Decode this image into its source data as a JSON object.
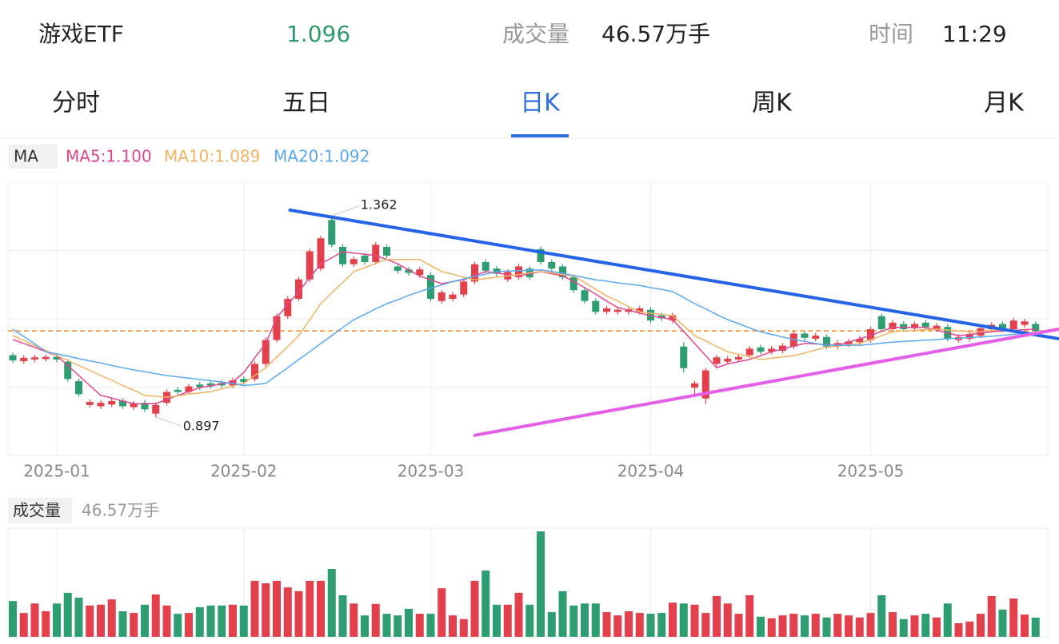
{
  "header": {
    "name": "游戏ETF",
    "price": 1.096,
    "volume_label": "成交量",
    "volume": "46.57万手",
    "time_label": "时间",
    "time": "11:29"
  },
  "tabs": [
    "分时",
    "五日",
    "日K",
    "周K",
    "月K"
  ],
  "active_tab": 2,
  "ma_title": "MA",
  "ma_legend": [
    "MA5:1.100",
    "MA10:1.089",
    "MA20:1.092"
  ],
  "volume_title": "成交量",
  "chart_data": {
    "type": "candlestick",
    "categories": [
      null,
      null,
      null,
      null,
      "2025-01",
      null,
      null,
      null,
      null,
      null,
      null,
      null,
      null,
      null,
      null,
      null,
      null,
      null,
      null,
      null,
      null,
      "2025-02",
      null,
      null,
      null,
      null,
      null,
      null,
      null,
      null,
      null,
      null,
      null,
      null,
      null,
      null,
      null,
      null,
      "2025-03",
      null,
      null,
      null,
      null,
      null,
      null,
      null,
      null,
      null,
      null,
      null,
      null,
      null,
      null,
      null,
      null,
      null,
      null,
      null,
      "2025-04",
      null,
      null,
      null,
      null,
      null,
      null,
      null,
      null,
      null,
      null,
      null,
      null,
      null,
      null,
      null,
      null,
      null,
      null,
      null,
      "2025-05",
      null,
      null,
      null,
      null,
      null,
      null,
      null,
      null,
      null,
      null,
      null,
      null,
      null,
      null,
      null
    ],
    "open": [
      1.04,
      1.026,
      1.03,
      1.031,
      1.036,
      1.025,
      0.98,
      0.925,
      0.922,
      0.926,
      0.935,
      0.92,
      0.93,
      0.905,
      0.93,
      0.96,
      0.955,
      0.972,
      0.975,
      0.976,
      0.97,
      0.985,
      0.985,
      1.02,
      1.075,
      1.13,
      1.17,
      1.215,
      1.24,
      1.352,
      1.29,
      1.25,
      1.27,
      1.255,
      1.29,
      1.245,
      1.238,
      1.225,
      1.225,
      1.165,
      1.17,
      1.18,
      1.21,
      1.255,
      1.24,
      1.215,
      1.22,
      1.24,
      1.285,
      1.255,
      1.245,
      1.22,
      1.19,
      1.165,
      1.14,
      1.14,
      1.14,
      1.14,
      1.145,
      1.132,
      1.12,
      1.06,
      0.965,
      0.94,
      1.02,
      1.025,
      1.03,
      1.04,
      1.058,
      1.048,
      1.05,
      1.06,
      1.09,
      1.078,
      1.082,
      1.06,
      1.065,
      1.07,
      1.075,
      1.13,
      1.1,
      1.112,
      1.102,
      1.115,
      1.1,
      1.105,
      1.075,
      1.078,
      1.085,
      1.1,
      1.112,
      1.1,
      1.11,
      1.112
    ],
    "high": [
      1.046,
      1.04,
      1.041,
      1.042,
      1.042,
      1.031,
      0.986,
      0.938,
      0.936,
      0.94,
      0.941,
      0.934,
      0.936,
      0.931,
      0.961,
      0.966,
      0.974,
      0.978,
      0.981,
      0.982,
      0.988,
      0.991,
      1.026,
      1.081,
      1.136,
      1.176,
      1.221,
      1.286,
      1.316,
      1.362,
      1.296,
      1.268,
      1.276,
      1.301,
      1.296,
      1.251,
      1.244,
      1.244,
      1.231,
      1.191,
      1.186,
      1.216,
      1.256,
      1.261,
      1.246,
      1.238,
      1.251,
      1.246,
      1.291,
      1.261,
      1.251,
      1.226,
      1.196,
      1.171,
      1.154,
      1.151,
      1.152,
      1.154,
      1.151,
      1.138,
      1.138,
      1.07,
      0.981,
      1.011,
      1.041,
      1.038,
      1.042,
      1.061,
      1.064,
      1.061,
      1.068,
      1.096,
      1.096,
      1.091,
      1.088,
      1.074,
      1.078,
      1.084,
      1.106,
      1.136,
      1.121,
      1.118,
      1.118,
      1.121,
      1.114,
      1.111,
      1.088,
      1.094,
      1.108,
      1.116,
      1.118,
      1.126,
      1.124,
      1.118
    ],
    "low": [
      1.022,
      1.02,
      1.024,
      1.025,
      1.024,
      0.979,
      0.944,
      0.919,
      0.916,
      0.92,
      0.916,
      0.914,
      0.909,
      0.897,
      0.924,
      0.949,
      0.949,
      0.96,
      0.962,
      0.964,
      0.964,
      0.972,
      0.979,
      1.014,
      1.069,
      1.124,
      1.164,
      1.209,
      1.234,
      1.289,
      1.244,
      1.244,
      1.249,
      1.249,
      1.264,
      1.229,
      1.224,
      1.219,
      1.164,
      1.159,
      1.164,
      1.174,
      1.204,
      1.229,
      1.222,
      1.209,
      1.214,
      1.214,
      1.249,
      1.234,
      1.214,
      1.184,
      1.159,
      1.134,
      1.134,
      1.134,
      1.134,
      1.134,
      1.114,
      1.119,
      1.114,
      1.0,
      0.945,
      0.927,
      1.014,
      1.019,
      1.024,
      1.034,
      1.042,
      1.042,
      1.044,
      1.054,
      1.074,
      1.072,
      1.054,
      1.054,
      1.059,
      1.064,
      1.069,
      1.094,
      1.094,
      1.094,
      1.096,
      1.099,
      1.094,
      1.072,
      1.069,
      1.072,
      1.079,
      1.094,
      1.094,
      1.094,
      1.104,
      1.09
    ],
    "close": [
      1.028,
      1.034,
      1.035,
      1.036,
      1.03,
      0.985,
      0.95,
      0.932,
      0.93,
      0.934,
      0.922,
      0.928,
      0.915,
      0.925,
      0.955,
      0.955,
      0.968,
      0.966,
      0.968,
      0.97,
      0.982,
      0.978,
      1.02,
      1.075,
      1.13,
      1.17,
      1.215,
      1.28,
      1.31,
      1.295,
      1.25,
      1.262,
      1.255,
      1.295,
      1.27,
      1.235,
      1.23,
      1.238,
      1.17,
      1.185,
      1.18,
      1.21,
      1.25,
      1.235,
      1.228,
      1.232,
      1.245,
      1.22,
      1.255,
      1.24,
      1.22,
      1.19,
      1.165,
      1.14,
      1.148,
      1.145,
      1.146,
      1.148,
      1.12,
      1.125,
      1.132,
      1.01,
      0.975,
      1.005,
      1.035,
      1.032,
      1.036,
      1.055,
      1.048,
      1.055,
      1.062,
      1.09,
      1.08,
      1.085,
      1.06,
      1.068,
      1.072,
      1.078,
      1.1,
      1.1,
      1.115,
      1.1,
      1.112,
      1.105,
      1.108,
      1.078,
      1.082,
      1.088,
      1.102,
      1.11,
      1.1,
      1.12,
      1.118,
      1.096
    ],
    "up_color": "#e2414b",
    "down_color": "#2f9d72",
    "ma": [
      {
        "name": "MA5",
        "color": "#e2478e",
        "values": [
          1.076,
          1.067,
          1.058,
          1.048,
          1.039,
          1.016,
          0.993,
          0.97,
          0.947,
          0.941,
          0.934,
          0.928,
          0.928,
          0.928,
          0.938,
          0.947,
          0.956,
          0.965,
          0.969,
          0.974,
          0.978,
          1.0,
          1.034,
          1.067,
          1.127,
          1.157,
          1.187,
          1.219,
          1.251,
          1.265,
          1.279,
          1.276,
          1.273,
          1.27,
          1.261,
          1.251,
          1.237,
          1.223,
          1.214,
          1.205,
          1.21,
          1.214,
          1.224,
          1.233,
          1.23,
          1.226,
          1.223,
          1.228,
          1.233,
          1.228,
          1.223,
          1.21,
          1.196,
          1.181,
          1.165,
          1.15,
          1.144,
          1.137,
          1.131,
          1.127,
          1.122,
          1.095,
          1.067,
          1.039,
          1.011,
          1.02,
          1.025,
          1.03,
          1.039,
          1.048,
          1.054,
          1.061,
          1.067,
          1.066,
          1.064,
          1.063,
          1.07,
          1.078,
          1.085,
          1.095,
          1.104,
          1.104,
          1.104,
          1.104,
          1.098,
          1.091,
          1.085,
          1.088,
          1.091,
          1.094,
          1.096,
          1.097,
          1.099,
          1.1
        ]
      },
      {
        "name": "MA10",
        "color": "#f2b463",
        "values": [
          1.085,
          1.074,
          1.062,
          1.051,
          1.039,
          1.028,
          1.016,
          1.005,
          0.993,
          0.982,
          0.97,
          0.959,
          0.947,
          0.945,
          0.943,
          0.946,
          0.95,
          0.953,
          0.956,
          0.962,
          0.969,
          0.975,
          0.993,
          1.011,
          1.036,
          1.06,
          1.085,
          1.122,
          1.159,
          1.184,
          1.208,
          1.233,
          1.242,
          1.252,
          1.261,
          1.261,
          1.261,
          1.261,
          1.247,
          1.233,
          1.227,
          1.22,
          1.214,
          1.217,
          1.22,
          1.223,
          1.226,
          1.23,
          1.233,
          1.23,
          1.226,
          1.223,
          1.208,
          1.192,
          1.177,
          1.165,
          1.152,
          1.14,
          1.137,
          1.134,
          1.131,
          1.108,
          1.085,
          1.073,
          1.06,
          1.048,
          1.042,
          1.036,
          1.03,
          1.033,
          1.036,
          1.039,
          1.045,
          1.052,
          1.058,
          1.061,
          1.064,
          1.067,
          1.076,
          1.085,
          1.094,
          1.096,
          1.097,
          1.099,
          1.1,
          1.098,
          1.096,
          1.094,
          1.095,
          1.097,
          1.098,
          1.095,
          1.092,
          1.089
        ]
      },
      {
        "name": "MA20",
        "color": "#5aa9ef",
        "values": [
          1.1,
          1.083,
          1.066,
          1.048,
          1.043,
          1.038,
          1.032,
          1.027,
          1.022,
          1.016,
          1.011,
          1.006,
          1.002,
          0.997,
          0.993,
          0.99,
          0.987,
          0.984,
          0.981,
          0.978,
          0.975,
          0.97,
          0.972,
          0.975,
          0.993,
          1.011,
          1.03,
          1.048,
          1.067,
          1.085,
          1.104,
          1.122,
          1.134,
          1.147,
          1.159,
          1.168,
          1.178,
          1.187,
          1.195,
          1.202,
          1.21,
          1.216,
          1.222,
          1.227,
          1.233,
          1.234,
          1.235,
          1.236,
          1.237,
          1.233,
          1.229,
          1.224,
          1.219,
          1.214,
          1.211,
          1.207,
          1.204,
          1.201,
          1.196,
          1.192,
          1.187,
          1.173,
          1.159,
          1.147,
          1.134,
          1.122,
          1.113,
          1.103,
          1.094,
          1.088,
          1.082,
          1.076,
          1.072,
          1.067,
          1.063,
          1.063,
          1.063,
          1.063,
          1.065,
          1.068,
          1.07,
          1.072,
          1.073,
          1.075,
          1.076,
          1.078,
          1.079,
          1.081,
          1.082,
          1.084,
          1.086,
          1.088,
          1.09,
          1.092
        ]
      }
    ],
    "volume": [
      87,
      58,
      81,
      62,
      81,
      107,
      95,
      76,
      78,
      91,
      62,
      58,
      78,
      103,
      76,
      56,
      58,
      72,
      76,
      76,
      78,
      76,
      136,
      130,
      136,
      120,
      111,
      136,
      136,
      165,
      101,
      81,
      52,
      80,
      56,
      52,
      68,
      56,
      56,
      118,
      52,
      43,
      136,
      161,
      78,
      78,
      107,
      78,
      256,
      60,
      111,
      76,
      81,
      81,
      60,
      52,
      62,
      58,
      56,
      58,
      83,
      81,
      78,
      58,
      99,
      81,
      56,
      101,
      49,
      45,
      52,
      56,
      52,
      56,
      47,
      56,
      52,
      47,
      58,
      101,
      60,
      43,
      52,
      56,
      47,
      81,
      33,
      37,
      56,
      99,
      66,
      93,
      54,
      46.57
    ],
    "ylim": [
      0.8085,
      1.4395
    ],
    "volume_ylim": [
      0,
      264
    ],
    "grid": true,
    "price_line_color": "#f08a2c",
    "trendlines": [
      {
        "color": "#2563e8",
        "start": [
          25.2,
          1.375
        ],
        "end": [
          95.1,
          1.078
        ]
      },
      {
        "color": "#e45ee8",
        "start": [
          42.0,
          0.855
        ],
        "end": [
          95.1,
          1.1
        ]
      }
    ]
  }
}
